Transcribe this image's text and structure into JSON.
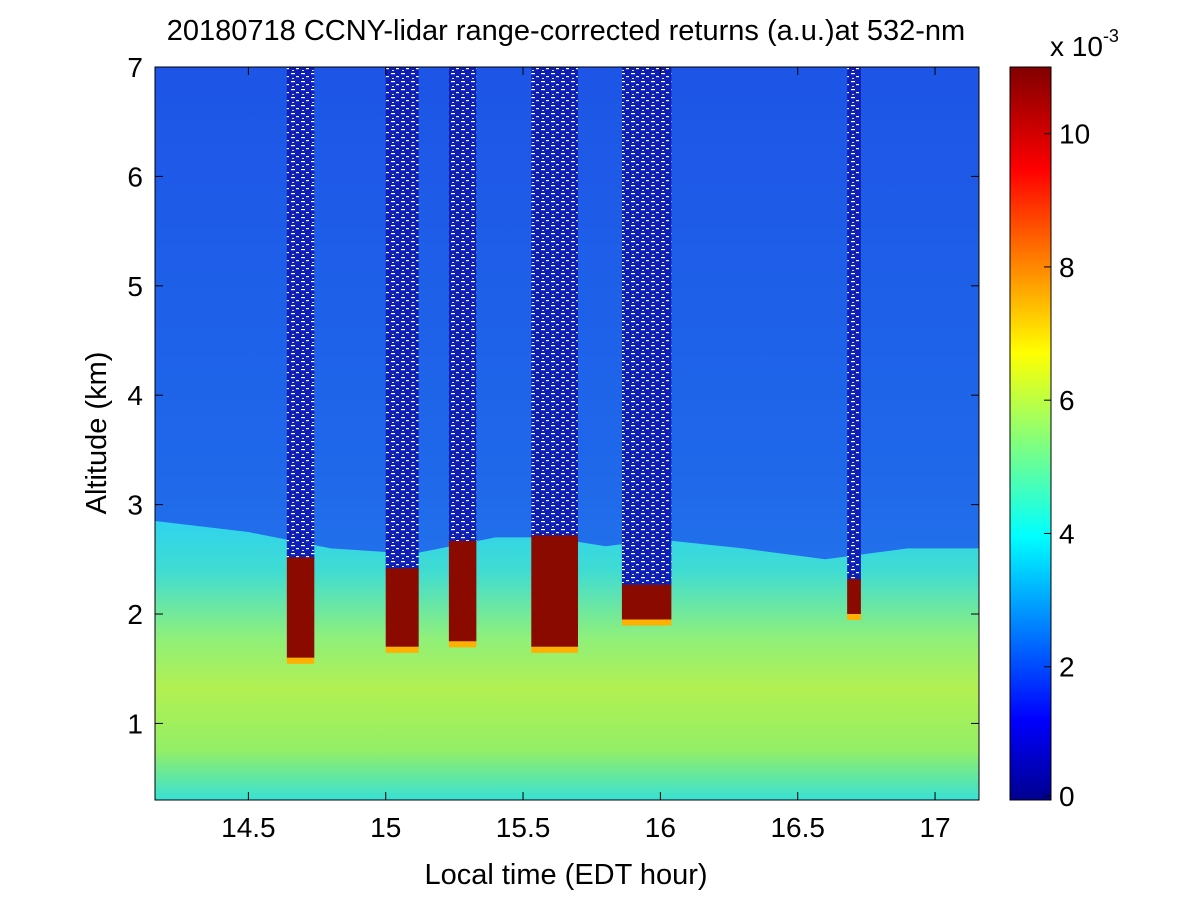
{
  "chart_data": {
    "type": "heatmap",
    "title": "20180718 CCNY-lidar range-corrected returns (a.u.)at 532-nm",
    "xlabel": "Local time (EDT hour)",
    "ylabel": "Altitude (km)",
    "xlim": [
      14.16,
      17.16
    ],
    "ylim": [
      0.3,
      7
    ],
    "x_ticks": [
      14.5,
      15,
      15.5,
      16,
      16.5,
      17
    ],
    "x_tick_labels": [
      "14.5",
      "15",
      "15.5",
      "16",
      "16.5",
      "17"
    ],
    "y_ticks": [
      1,
      2,
      3,
      4,
      5,
      6,
      7
    ],
    "y_tick_labels": [
      "1",
      "2",
      "3",
      "4",
      "5",
      "6",
      "7"
    ],
    "colormap": "jet",
    "colorbar": {
      "range": [
        0,
        11
      ],
      "ticks": [
        0,
        2,
        4,
        6,
        8,
        10
      ],
      "tick_labels": [
        "0",
        "2",
        "4",
        "6",
        "8",
        "10"
      ],
      "multiplier_base": "x 10",
      "multiplier_exponent": "-3"
    },
    "boundary_layer_top_km": [
      {
        "t": 14.16,
        "z": 2.85
      },
      {
        "t": 14.5,
        "z": 2.75
      },
      {
        "t": 14.8,
        "z": 2.6
      },
      {
        "t": 15.1,
        "z": 2.55
      },
      {
        "t": 15.4,
        "z": 2.7
      },
      {
        "t": 15.6,
        "z": 2.7
      },
      {
        "t": 15.8,
        "z": 2.62
      },
      {
        "t": 16.0,
        "z": 2.68
      },
      {
        "t": 16.3,
        "z": 2.6
      },
      {
        "t": 16.6,
        "z": 2.5
      },
      {
        "t": 16.9,
        "z": 2.6
      },
      {
        "t": 17.16,
        "z": 2.6
      }
    ],
    "cloud_columns": [
      {
        "t0": 14.64,
        "t1": 14.74,
        "base_km": 1.6,
        "top_km": 2.5
      },
      {
        "t0": 15.0,
        "t1": 15.12,
        "base_km": 1.7,
        "top_km": 2.4
      },
      {
        "t0": 15.23,
        "t1": 15.33,
        "base_km": 1.75,
        "top_km": 2.65
      },
      {
        "t0": 15.53,
        "t1": 15.7,
        "base_km": 1.7,
        "top_km": 2.7
      },
      {
        "t0": 15.86,
        "t1": 16.04,
        "base_km": 1.95,
        "top_km": 2.25
      },
      {
        "t0": 16.68,
        "t1": 16.73,
        "base_km": 2.0,
        "top_km": 2.3
      }
    ]
  }
}
